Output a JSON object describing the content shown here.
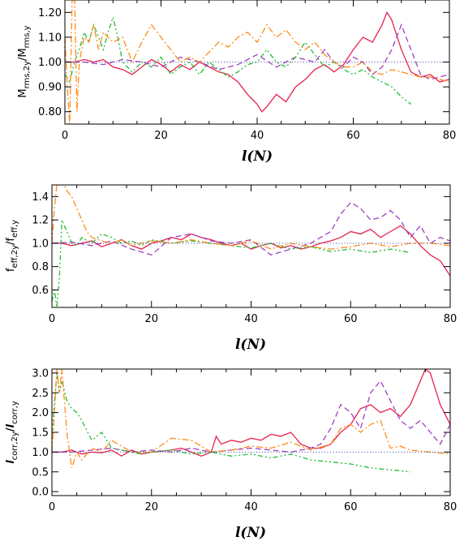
{
  "chart_data": [
    {
      "type": "line",
      "xlabel_main": "l",
      "xlabel_arg": "(N)",
      "ylabel_num_main": "M",
      "ylabel_num_sub": "rms,2y",
      "ylabel_den_main": "M",
      "ylabel_den_sub": "rms,y",
      "xlim": [
        0,
        80
      ],
      "ylim": [
        0.75,
        1.25
      ],
      "xticks": [
        0,
        20,
        40,
        60,
        80
      ],
      "yticks": [
        0.8,
        0.9,
        1.0,
        1.1,
        1.2
      ],
      "ytick_labels": [
        "0.80",
        "0.90",
        "1.00",
        "1.10",
        "1.20"
      ],
      "reference_line": 1.0,
      "series": [
        {
          "color": "#e8204a",
          "dash": "solid",
          "x": [
            0,
            2,
            4,
            6,
            8,
            10,
            12,
            14,
            16,
            18,
            20,
            22,
            24,
            26,
            28,
            30,
            32,
            34,
            36,
            38,
            40,
            41,
            42,
            44,
            46,
            48,
            50,
            52,
            54,
            56,
            58,
            60,
            62,
            64,
            66,
            67,
            68,
            70,
            72,
            74,
            76,
            78,
            80
          ],
          "y": [
            1.0,
            1.0,
            1.01,
            1.0,
            1.01,
            0.98,
            0.97,
            0.95,
            0.98,
            1.01,
            0.99,
            0.96,
            0.99,
            0.97,
            1.0,
            0.98,
            0.96,
            0.95,
            0.92,
            0.87,
            0.83,
            0.8,
            0.82,
            0.87,
            0.84,
            0.9,
            0.93,
            0.97,
            0.99,
            0.96,
            0.99,
            1.05,
            1.1,
            1.08,
            1.15,
            1.2,
            1.17,
            1.05,
            0.96,
            0.94,
            0.95,
            0.92,
            0.93
          ]
        },
        {
          "color": "#a040c0",
          "dash": "7,4",
          "x": [
            0,
            4,
            8,
            12,
            16,
            20,
            24,
            28,
            32,
            36,
            40,
            44,
            48,
            52,
            54,
            56,
            58,
            60,
            62,
            64,
            66,
            68,
            70,
            72,
            74,
            76,
            78,
            80
          ],
          "y": [
            1.0,
            1.0,
            0.99,
            1.01,
            1.0,
            0.98,
            1.02,
            1.0,
            0.97,
            0.99,
            1.03,
            0.98,
            1.02,
            1.0,
            1.05,
            1.0,
            0.98,
            1.02,
            1.0,
            0.95,
            0.98,
            1.05,
            1.15,
            1.05,
            0.95,
            0.93,
            0.94,
            0.95
          ]
        },
        {
          "color": "#22bb33",
          "dash": "6,3,2,3,2,3",
          "x": [
            0,
            1,
            2,
            3,
            4,
            5,
            6,
            7,
            8,
            9,
            10,
            11,
            12,
            14,
            16,
            18,
            20,
            22,
            24,
            26,
            28,
            30,
            32,
            34,
            36,
            38,
            40,
            42,
            44,
            46,
            48,
            50,
            52,
            54,
            56,
            58,
            60,
            62,
            64,
            66,
            68,
            70,
            72
          ],
          "y": [
            0.95,
            0.92,
            1.0,
            1.05,
            1.12,
            1.08,
            1.15,
            1.1,
            1.05,
            1.12,
            1.18,
            1.1,
            1.0,
            0.96,
            1.0,
            0.98,
            1.02,
            0.95,
            0.98,
            1.0,
            0.95,
            1.0,
            0.97,
            0.94,
            0.96,
            0.99,
            1.0,
            1.05,
            1.0,
            0.98,
            1.02,
            1.08,
            1.03,
            0.98,
            1.0,
            0.97,
            0.95,
            0.97,
            0.94,
            0.92,
            0.9,
            0.86,
            0.83
          ]
        },
        {
          "color": "#ff8c1a",
          "dash": "8,3,2,3",
          "x": [
            0,
            0.5,
            1,
            1.5,
            2,
            2.5,
            3,
            4,
            5,
            6,
            7,
            8,
            10,
            12,
            14,
            16,
            18,
            20,
            22,
            24,
            26,
            28,
            30,
            32,
            34,
            36,
            38,
            40,
            42,
            44,
            46,
            48,
            50,
            52,
            54,
            56,
            58,
            60,
            62,
            64,
            66,
            68,
            70,
            72,
            74,
            76,
            78,
            80
          ],
          "y": [
            1.1,
            0.9,
            0.75,
            1.25,
            1.3,
            0.8,
            1.0,
            1.1,
            1.08,
            1.15,
            1.05,
            1.12,
            1.08,
            1.1,
            1.0,
            1.08,
            1.15,
            1.1,
            1.05,
            1.0,
            1.02,
            1.0,
            1.04,
            1.08,
            1.06,
            1.1,
            1.12,
            1.08,
            1.15,
            1.1,
            1.13,
            1.08,
            1.05,
            1.08,
            1.03,
            1.0,
            0.98,
            0.98,
            1.0,
            0.96,
            0.95,
            0.97,
            0.96,
            0.95,
            0.94,
            0.94,
            0.93,
            0.92
          ]
        }
      ]
    },
    {
      "type": "line",
      "xlabel_main": "l",
      "xlabel_arg": "(N)",
      "ylabel_num_main": "f",
      "ylabel_num_sub": "eff,2y",
      "ylabel_den_main": "f",
      "ylabel_den_sub": "eff,y",
      "xlim": [
        0,
        80
      ],
      "ylim": [
        0.45,
        1.5
      ],
      "xticks": [
        0,
        20,
        40,
        60,
        80
      ],
      "yticks": [
        0.6,
        0.8,
        1.0,
        1.2,
        1.4
      ],
      "ytick_labels": [
        "0.6",
        "0.8",
        "1.0",
        "1.2",
        "1.4"
      ],
      "reference_line": 1.0,
      "series": [
        {
          "color": "#e8204a",
          "dash": "solid",
          "x": [
            0,
            2,
            4,
            6,
            8,
            10,
            12,
            14,
            16,
            18,
            20,
            22,
            24,
            26,
            28,
            30,
            32,
            34,
            36,
            38,
            40,
            42,
            44,
            46,
            48,
            50,
            52,
            54,
            56,
            58,
            60,
            62,
            64,
            66,
            68,
            70,
            72,
            74,
            76,
            78,
            80
          ],
          "y": [
            1.0,
            1.0,
            0.98,
            1.0,
            1.02,
            0.97,
            1.0,
            1.03,
            0.98,
            0.95,
            1.0,
            1.02,
            1.05,
            1.03,
            1.08,
            1.05,
            1.03,
            1.0,
            0.98,
            1.0,
            0.95,
            0.98,
            1.0,
            0.96,
            0.98,
            0.95,
            0.97,
            1.0,
            1.02,
            1.05,
            1.1,
            1.08,
            1.12,
            1.05,
            1.1,
            1.15,
            1.08,
            0.98,
            0.9,
            0.85,
            0.72
          ]
        },
        {
          "color": "#a040c0",
          "dash": "7,4",
          "x": [
            0,
            4,
            8,
            12,
            16,
            20,
            24,
            28,
            32,
            36,
            40,
            44,
            48,
            52,
            54,
            56,
            58,
            60,
            62,
            64,
            66,
            68,
            70,
            72,
            74,
            76,
            78,
            80
          ],
          "y": [
            1.0,
            1.01,
            0.98,
            1.02,
            0.95,
            0.9,
            1.05,
            1.08,
            1.02,
            1.0,
            1.03,
            0.9,
            0.95,
            1.0,
            1.05,
            1.1,
            1.25,
            1.35,
            1.3,
            1.2,
            1.22,
            1.28,
            1.2,
            1.05,
            1.15,
            1.0,
            1.05,
            1.02
          ]
        },
        {
          "color": "#22bb33",
          "dash": "6,3,2,3,2,3",
          "x": [
            0,
            0.5,
            1,
            1.5,
            2,
            3,
            4,
            5,
            6,
            8,
            10,
            12,
            14,
            16,
            18,
            20,
            24,
            28,
            32,
            36,
            40,
            44,
            48,
            52,
            56,
            60,
            64,
            68,
            72
          ],
          "y": [
            0.5,
            0.6,
            0.45,
            0.7,
            1.2,
            1.1,
            1.0,
            0.98,
            1.05,
            1.0,
            1.08,
            1.05,
            1.0,
            1.02,
            0.98,
            1.03,
            1.0,
            1.02,
            1.0,
            0.98,
            0.96,
            1.0,
            0.95,
            0.97,
            0.93,
            0.95,
            0.92,
            0.95,
            0.92
          ]
        },
        {
          "color": "#ff8c1a",
          "dash": "8,3,2,3",
          "x": [
            0,
            0.5,
            1,
            2,
            3,
            4,
            5,
            6,
            7,
            8,
            10,
            12,
            14,
            16,
            20,
            24,
            28,
            32,
            36,
            40,
            44,
            48,
            52,
            56,
            60,
            64,
            68,
            72,
            76,
            80
          ],
          "y": [
            1.0,
            1.3,
            1.5,
            1.55,
            1.45,
            1.4,
            1.3,
            1.2,
            1.1,
            1.05,
            1.02,
            1.0,
            1.03,
            0.98,
            1.02,
            1.0,
            1.03,
            1.0,
            0.98,
            1.02,
            0.95,
            1.0,
            0.97,
            0.95,
            0.97,
            1.0,
            0.97,
            1.0,
            1.0,
            0.98
          ]
        }
      ]
    },
    {
      "type": "line",
      "xlabel_main": "l",
      "xlabel_arg": "(N)",
      "ylabel_num_main": "l",
      "ylabel_num_sub": "corr,2y",
      "ylabel_den_main": "l",
      "ylabel_den_sub": "corr,y",
      "xlim": [
        0,
        80
      ],
      "ylim": [
        -0.1,
        3.1
      ],
      "xticks": [
        0,
        20,
        40,
        60,
        80
      ],
      "yticks": [
        0.0,
        0.5,
        1.0,
        1.5,
        2.0,
        2.5,
        3.0
      ],
      "ytick_labels": [
        "0.0",
        "0.5",
        "1.0",
        "1.5",
        "2.0",
        "2.5",
        "3.0"
      ],
      "reference_line": 1.0,
      "series": [
        {
          "color": "#e8204a",
          "dash": "solid",
          "x": [
            0,
            2,
            4,
            6,
            8,
            10,
            12,
            14,
            16,
            18,
            20,
            22,
            24,
            26,
            28,
            30,
            32,
            33,
            34,
            36,
            38,
            40,
            42,
            44,
            46,
            48,
            50,
            52,
            54,
            56,
            58,
            60,
            62,
            64,
            66,
            68,
            70,
            72,
            74,
            75,
            76,
            78,
            80
          ],
          "y": [
            1.0,
            1.0,
            1.05,
            0.95,
            1.0,
            0.98,
            1.05,
            0.9,
            1.05,
            0.95,
            1.0,
            1.02,
            1.05,
            1.1,
            1.0,
            0.9,
            1.0,
            1.4,
            1.2,
            1.3,
            1.25,
            1.35,
            1.3,
            1.45,
            1.4,
            1.5,
            1.2,
            1.1,
            1.1,
            1.2,
            1.5,
            1.7,
            2.1,
            2.2,
            2.0,
            2.1,
            1.9,
            2.2,
            2.8,
            3.1,
            3.0,
            2.2,
            1.7
          ]
        },
        {
          "color": "#a040c0",
          "dash": "7,4",
          "x": [
            0,
            4,
            8,
            12,
            16,
            20,
            24,
            28,
            32,
            36,
            40,
            44,
            48,
            52,
            54,
            56,
            58,
            60,
            62,
            64,
            66,
            68,
            70,
            72,
            74,
            76,
            78,
            80
          ],
          "y": [
            1.0,
            1.0,
            1.05,
            1.1,
            1.0,
            1.05,
            1.0,
            1.1,
            1.0,
            1.05,
            1.1,
            1.05,
            1.0,
            1.1,
            1.2,
            1.6,
            2.2,
            2.0,
            1.6,
            2.5,
            2.8,
            2.3,
            1.8,
            1.6,
            1.8,
            1.5,
            1.2,
            1.7
          ]
        },
        {
          "color": "#22bb33",
          "dash": "6,3,2,3,2,3",
          "x": [
            0,
            1,
            1.5,
            2,
            3,
            4,
            5,
            6,
            8,
            10,
            12,
            14,
            16,
            18,
            20,
            24,
            28,
            32,
            36,
            40,
            44,
            48,
            52,
            56,
            60,
            64,
            68,
            72
          ],
          "y": [
            1.5,
            3.0,
            2.5,
            2.8,
            2.3,
            2.1,
            2.0,
            1.8,
            1.3,
            1.5,
            1.1,
            1.05,
            1.0,
            0.95,
            1.0,
            1.05,
            0.95,
            1.0,
            0.9,
            0.95,
            0.85,
            0.95,
            0.8,
            0.75,
            0.7,
            0.6,
            0.55,
            0.5
          ]
        },
        {
          "color": "#ff8c1a",
          "dash": "8,3,2,3",
          "x": [
            0,
            0.5,
            1,
            1.5,
            2,
            3,
            4,
            5,
            6,
            8,
            10,
            12,
            16,
            20,
            24,
            28,
            32,
            36,
            40,
            44,
            48,
            52,
            56,
            58,
            60,
            62,
            64,
            66,
            68,
            70,
            72,
            76,
            80
          ],
          "y": [
            1.0,
            2.0,
            3.1,
            2.5,
            3.1,
            1.5,
            0.6,
            1.0,
            0.8,
            1.1,
            1.0,
            1.3,
            1.0,
            1.0,
            1.35,
            1.3,
            1.0,
            1.05,
            1.15,
            1.1,
            1.25,
            1.05,
            1.2,
            1.6,
            1.7,
            1.5,
            1.7,
            1.8,
            1.1,
            1.15,
            1.05,
            1.0,
            0.95
          ]
        }
      ]
    }
  ]
}
